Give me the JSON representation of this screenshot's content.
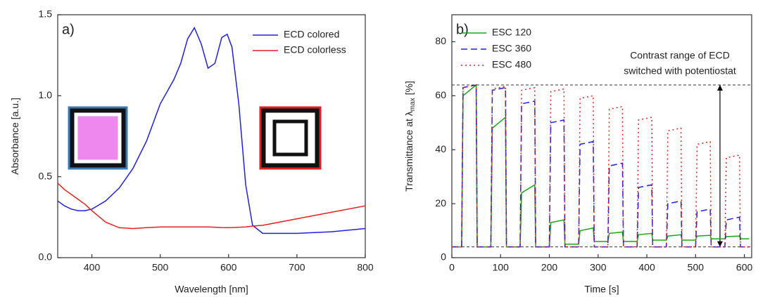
{
  "chart_data": [
    {
      "type": "line",
      "panel_label": "a)",
      "xlabel": "Wavelength [nm]",
      "ylabel": [
        "Absorbance [a.u.]"
      ],
      "xlim": [
        350,
        800
      ],
      "xticks": [
        400,
        500,
        600,
        700,
        800
      ],
      "ylim": [
        0,
        1.5
      ],
      "yticks": [
        {
          "value": 0,
          "label": "0.0"
        },
        0.5,
        {
          "value": 1,
          "label": "1.0"
        },
        1.5
      ],
      "legend": "top-right",
      "x": [
        350,
        360,
        370,
        380,
        390,
        400,
        420,
        440,
        460,
        480,
        500,
        520,
        530,
        540,
        550,
        560,
        570,
        580,
        590,
        598,
        605,
        615,
        625,
        635,
        650,
        700,
        750,
        800
      ],
      "series": [
        {
          "name": "ECD colored",
          "color": "#2020e0",
          "dash": "none",
          "values": [
            0.35,
            0.32,
            0.3,
            0.29,
            0.29,
            0.3,
            0.35,
            0.43,
            0.55,
            0.72,
            0.95,
            1.1,
            1.2,
            1.35,
            1.42,
            1.32,
            1.17,
            1.2,
            1.36,
            1.38,
            1.3,
            0.95,
            0.45,
            0.2,
            0.15,
            0.15,
            0.16,
            0.18
          ]
        },
        {
          "name": "ECD colorless",
          "color": "#e82020",
          "dash": "none",
          "values": [
            0.46,
            0.42,
            0.39,
            0.36,
            0.33,
            0.29,
            0.22,
            0.185,
            0.18,
            0.185,
            0.19,
            0.19,
            0.19,
            0.19,
            0.19,
            0.19,
            0.19,
            0.188,
            0.186,
            0.185,
            0.186,
            0.188,
            0.19,
            0.195,
            0.2,
            0.24,
            0.28,
            0.32
          ]
        }
      ]
    },
    {
      "type": "line",
      "panel_label": "b)",
      "xlabel": "Time [s]",
      "ylabel": [
        "Transmittance at λ",
        "max",
        " [%]"
      ],
      "xlim": [
        0,
        615
      ],
      "xticks": [
        0,
        100,
        200,
        300,
        400,
        500,
        600
      ],
      "ylim": [
        0,
        90
      ],
      "yticks": [
        0,
        20,
        40,
        60,
        80
      ],
      "legend": "top-left",
      "hlines": [
        64,
        4
      ],
      "annotation": [
        "Contrast range of ECD",
        "switched with potentiostat"
      ],
      "x": [
        0,
        20,
        23,
        50,
        52,
        80,
        83,
        110,
        112,
        140,
        143,
        170,
        172,
        200,
        203,
        230,
        232,
        260,
        263,
        290,
        292,
        320,
        323,
        350,
        352,
        380,
        383,
        410,
        412,
        440,
        443,
        470,
        472,
        500,
        503,
        530,
        532,
        560,
        563,
        590,
        592,
        610
      ],
      "series": [
        {
          "name": "ESC 120",
          "color": "#1aa51a",
          "dash": "none",
          "values": [
            4,
            4,
            60,
            64,
            4,
            4,
            48,
            52,
            4,
            4,
            24,
            27,
            4,
            4,
            13,
            14,
            5,
            5,
            10,
            11,
            6,
            6,
            9,
            9.5,
            6,
            6,
            8.5,
            9,
            6.5,
            6.5,
            8,
            8.5,
            6.5,
            6.5,
            8,
            8.3,
            7,
            7,
            7.8,
            8,
            7,
            7
          ]
        },
        {
          "name": "ESC 360",
          "color": "#2020e0",
          "dash": "9 5",
          "values": [
            4,
            4,
            63,
            64,
            4,
            4,
            62,
            63,
            4,
            4,
            57,
            58,
            4,
            4,
            50,
            51,
            4,
            4,
            42,
            43,
            4,
            4,
            34,
            35,
            4,
            4,
            26,
            27,
            4,
            4,
            20,
            21,
            4,
            4,
            17,
            18,
            4,
            4,
            14,
            15,
            4,
            4
          ]
        },
        {
          "name": "ESC 480",
          "color": "#e82020",
          "dash": "2 4",
          "values": [
            4,
            4,
            63,
            64,
            4,
            4,
            62.5,
            63.5,
            4,
            4,
            62,
            63,
            4,
            4,
            61.5,
            62.5,
            4,
            4,
            59,
            60,
            4,
            4,
            55,
            56,
            4,
            4,
            51,
            52,
            4,
            4,
            47,
            48,
            4,
            4,
            42,
            43,
            4,
            4,
            37,
            38,
            4,
            4
          ]
        }
      ]
    }
  ]
}
